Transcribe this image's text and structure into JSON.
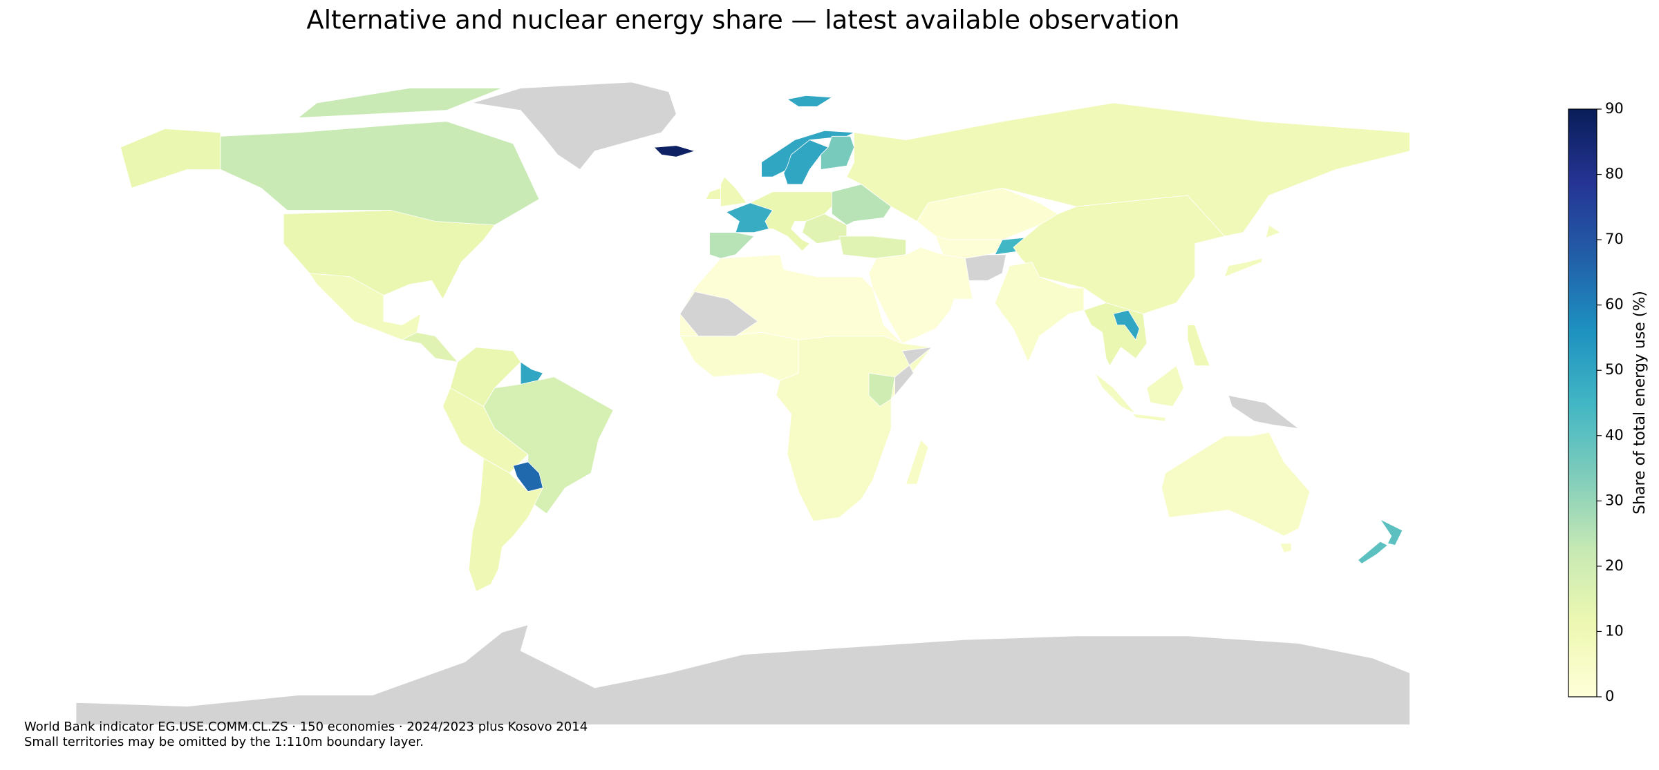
{
  "chart_data": {
    "type": "choropleth",
    "title": "Alternative and nuclear energy share — latest available observation",
    "values": [
      22,
      12,
      8,
      15,
      12,
      50,
      10,
      18,
      65,
      10,
      88,
      50,
      50,
      35,
      10,
      10,
      48,
      25,
      12,
      25,
      15,
      15,
      9,
      2,
      1,
      45,
      1,
      9,
      4,
      12,
      50,
      8,
      7,
      10,
      5,
      40,
      1,
      3,
      5,
      20,
      5
    ],
    "colormap": [
      "#ffffd9",
      "#edf8b1",
      "#c7e9b4",
      "#7fcdbb",
      "#41b6c4",
      "#1d91c0",
      "#225ea8",
      "#253494",
      "#081d58"
    ],
    "no_data_color": "#d3d3d3",
    "ylim": [
      0,
      90
    ],
    "yticks": [
      0,
      10,
      20,
      30,
      40,
      50,
      60,
      70,
      80,
      90
    ],
    "colorbar_label": "Share of total energy use (%)",
    "footnotes": [
      "World Bank indicator EG.USE.COMM.CL.ZS · 150 economies · 2024/2023 plus Kosovo 2014",
      "Small territories may be omitted by the 1:110m boundary layer."
    ]
  }
}
